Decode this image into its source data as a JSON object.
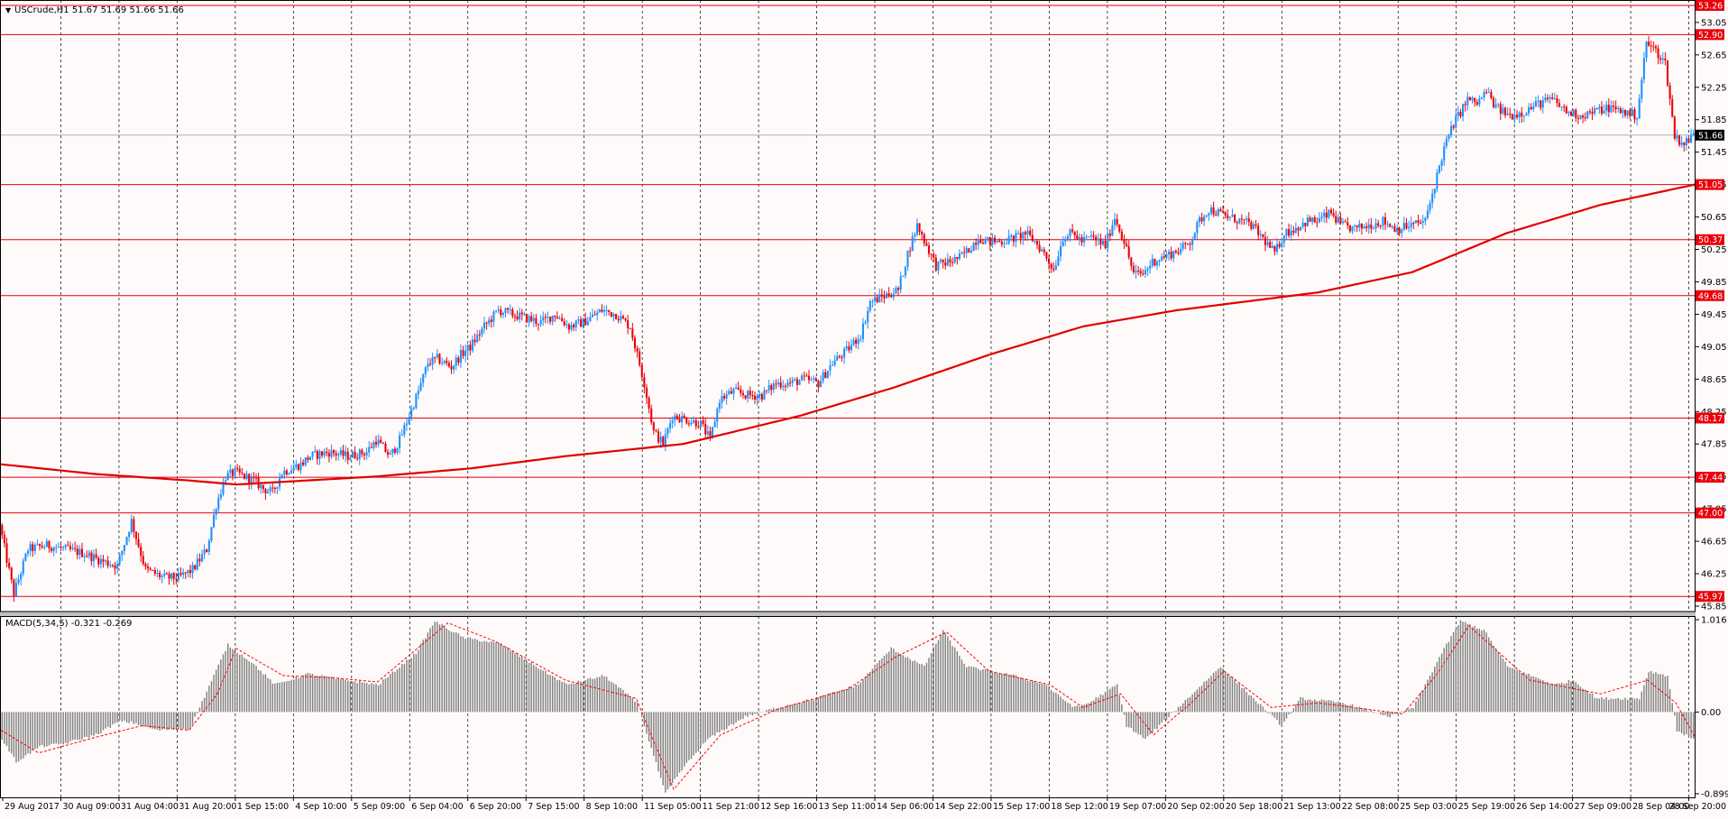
{
  "header": {
    "symbol_line": "USCrude,H1  51.67 51.69 51.66 51.66",
    "indicator_line": "MACD(5,34,5) -0.321 -0.269"
  },
  "colors": {
    "background": "#fffafa",
    "bull_candle": "#1e90ff",
    "bear_candle": "#e8000b",
    "level_line": "#e8000b",
    "moving_average": "#e00000",
    "macd_histogram": "#808080",
    "macd_signal": "#ff0000",
    "grid": "#000000",
    "current_price_tag": "#000000"
  },
  "chart_data": [
    {
      "type": "candlestick",
      "symbol": "USCrude",
      "timeframe": "H1",
      "last": {
        "open": 51.67,
        "high": 51.69,
        "low": 51.66,
        "close": 51.66
      },
      "ylim": [
        45.85,
        53.26
      ],
      "y_ticks": [
        "53.05",
        "52.65",
        "52.25",
        "51.85",
        "51.45",
        "51.05",
        "50.65",
        "50.25",
        "49.85",
        "49.45",
        "49.05",
        "48.65",
        "48.25",
        "47.85",
        "47.45",
        "47.05",
        "46.65",
        "46.25",
        "45.85"
      ],
      "x_ticks": [
        "29 Aug 2017",
        "30 Aug 09:00",
        "31 Aug 04:00",
        "31 Aug 20:00",
        "1 Sep 15:00",
        "4 Sep 10:00",
        "5 Sep 09:00",
        "6 Sep 04:00",
        "6 Sep 20:00",
        "7 Sep 15:00",
        "8 Sep 10:00",
        "11 Sep 05:00",
        "11 Sep 21:00",
        "12 Sep 16:00",
        "13 Sep 11:00",
        "14 Sep 06:00",
        "14 Sep 22:00",
        "15 Sep 17:00",
        "18 Sep 12:00",
        "19 Sep 07:00",
        "20 Sep 02:00",
        "20 Sep 18:00",
        "21 Sep 13:00",
        "22 Sep 08:00",
        "25 Sep 03:00",
        "25 Sep 19:00",
        "26 Sep 14:00",
        "27 Sep 09:00",
        "28 Sep 04:00",
        "28 Sep 20:00"
      ],
      "horizontal_levels": [
        "53.26",
        "52.90",
        "51.05",
        "50.37",
        "49.68",
        "48.17",
        "47.44",
        "47.00",
        "45.97"
      ],
      "current_price": "51.66",
      "close_path": [
        [
          0,
          46.85
        ],
        [
          6,
          46.0
        ],
        [
          12,
          46.55
        ],
        [
          20,
          46.6
        ],
        [
          28,
          46.55
        ],
        [
          36,
          46.5
        ],
        [
          44,
          46.4
        ],
        [
          50,
          46.35
        ],
        [
          56,
          46.9
        ],
        [
          62,
          46.3
        ],
        [
          70,
          46.2
        ],
        [
          76,
          46.2
        ],
        [
          82,
          46.3
        ],
        [
          88,
          46.55
        ],
        [
          92,
          47.1
        ],
        [
          96,
          47.45
        ],
        [
          100,
          47.5
        ],
        [
          104,
          47.45
        ],
        [
          108,
          47.4
        ],
        [
          112,
          47.3
        ],
        [
          116,
          47.25
        ],
        [
          120,
          47.5
        ],
        [
          124,
          47.55
        ],
        [
          128,
          47.6
        ],
        [
          132,
          47.7
        ],
        [
          140,
          47.75
        ],
        [
          148,
          47.7
        ],
        [
          156,
          47.75
        ],
        [
          160,
          47.9
        ],
        [
          166,
          47.7
        ],
        [
          170,
          47.9
        ],
        [
          174,
          48.2
        ],
        [
          178,
          48.5
        ],
        [
          182,
          48.85
        ],
        [
          186,
          48.9
        ],
        [
          192,
          48.8
        ],
        [
          196,
          48.95
        ],
        [
          200,
          49.05
        ],
        [
          206,
          49.3
        ],
        [
          212,
          49.5
        ],
        [
          218,
          49.45
        ],
        [
          224,
          49.4
        ],
        [
          230,
          49.35
        ],
        [
          236,
          49.45
        ],
        [
          242,
          49.3
        ],
        [
          248,
          49.35
        ],
        [
          256,
          49.5
        ],
        [
          262,
          49.45
        ],
        [
          268,
          49.3
        ],
        [
          274,
          48.6
        ],
        [
          278,
          48.0
        ],
        [
          282,
          47.85
        ],
        [
          286,
          48.2
        ],
        [
          292,
          48.15
        ],
        [
          298,
          48.1
        ],
        [
          302,
          47.9
        ],
        [
          306,
          48.4
        ],
        [
          312,
          48.5
        ],
        [
          318,
          48.45
        ],
        [
          324,
          48.45
        ],
        [
          330,
          48.6
        ],
        [
          336,
          48.6
        ],
        [
          342,
          48.65
        ],
        [
          348,
          48.6
        ],
        [
          354,
          48.85
        ],
        [
          360,
          49.0
        ],
        [
          366,
          49.2
        ],
        [
          370,
          49.6
        ],
        [
          374,
          49.65
        ],
        [
          378,
          49.7
        ],
        [
          382,
          49.75
        ],
        [
          386,
          50.2
        ],
        [
          390,
          50.55
        ],
        [
          394,
          50.3
        ],
        [
          398,
          50.05
        ],
        [
          404,
          50.1
        ],
        [
          408,
          50.15
        ],
        [
          412,
          50.25
        ],
        [
          416,
          50.4
        ],
        [
          420,
          50.35
        ],
        [
          426,
          50.35
        ],
        [
          432,
          50.4
        ],
        [
          436,
          50.45
        ],
        [
          440,
          50.35
        ],
        [
          444,
          50.2
        ],
        [
          448,
          50.0
        ],
        [
          452,
          50.4
        ],
        [
          456,
          50.45
        ],
        [
          460,
          50.35
        ],
        [
          464,
          50.4
        ],
        [
          470,
          50.3
        ],
        [
          474,
          50.65
        ],
        [
          478,
          50.35
        ],
        [
          482,
          49.95
        ],
        [
          486,
          49.95
        ],
        [
          490,
          50.1
        ],
        [
          494,
          50.15
        ],
        [
          498,
          50.2
        ],
        [
          502,
          50.25
        ],
        [
          506,
          50.35
        ],
        [
          510,
          50.6
        ],
        [
          514,
          50.75
        ],
        [
          518,
          50.7
        ],
        [
          522,
          50.65
        ],
        [
          528,
          50.6
        ],
        [
          532,
          50.55
        ],
        [
          538,
          50.35
        ],
        [
          542,
          50.2
        ],
        [
          546,
          50.45
        ],
        [
          550,
          50.5
        ],
        [
          556,
          50.6
        ],
        [
          560,
          50.6
        ],
        [
          566,
          50.7
        ],
        [
          570,
          50.55
        ],
        [
          576,
          50.5
        ],
        [
          582,
          50.55
        ],
        [
          588,
          50.6
        ],
        [
          594,
          50.5
        ],
        [
          600,
          50.55
        ],
        [
          606,
          50.6
        ],
        [
          610,
          51.05
        ],
        [
          614,
          51.5
        ],
        [
          618,
          51.8
        ],
        [
          624,
          52.1
        ],
        [
          628,
          52.05
        ],
        [
          632,
          52.2
        ],
        [
          636,
          52.0
        ],
        [
          642,
          51.9
        ],
        [
          648,
          51.95
        ],
        [
          654,
          52.05
        ],
        [
          660,
          52.1
        ],
        [
          666,
          51.95
        ],
        [
          672,
          51.9
        ],
        [
          678,
          51.95
        ],
        [
          684,
          52.0
        ],
        [
          690,
          51.95
        ],
        [
          696,
          51.9
        ],
        [
          700,
          52.8
        ],
        [
          704,
          52.7
        ],
        [
          708,
          52.55
        ],
        [
          712,
          51.65
        ],
        [
          716,
          51.55
        ],
        [
          720,
          51.66
        ]
      ],
      "moving_average_path": [
        [
          0,
          47.6
        ],
        [
          40,
          47.48
        ],
        [
          80,
          47.4
        ],
        [
          100,
          47.35
        ],
        [
          160,
          47.45
        ],
        [
          200,
          47.55
        ],
        [
          240,
          47.7
        ],
        [
          290,
          47.85
        ],
        [
          340,
          48.2
        ],
        [
          380,
          48.55
        ],
        [
          420,
          48.95
        ],
        [
          460,
          49.3
        ],
        [
          500,
          49.5
        ],
        [
          560,
          49.72
        ],
        [
          600,
          49.97
        ],
        [
          640,
          50.45
        ],
        [
          680,
          50.8
        ],
        [
          720,
          51.05
        ]
      ]
    },
    {
      "type": "histogram",
      "name": "MACD(5,34,5)",
      "values_text": [
        "-0.321",
        "-0.269"
      ],
      "ylim": [
        -0.899,
        1.016
      ],
      "y_ticks": [
        "1.016",
        "0.00",
        "-0.899"
      ],
      "histogram_path": [
        [
          0,
          -0.3
        ],
        [
          6,
          -0.55
        ],
        [
          16,
          -0.38
        ],
        [
          26,
          -0.35
        ],
        [
          40,
          -0.25
        ],
        [
          50,
          -0.1
        ],
        [
          56,
          -0.12
        ],
        [
          66,
          -0.2
        ],
        [
          80,
          -0.18
        ],
        [
          90,
          0.4
        ],
        [
          96,
          0.74
        ],
        [
          106,
          0.55
        ],
        [
          116,
          0.3
        ],
        [
          130,
          0.42
        ],
        [
          146,
          0.35
        ],
        [
          160,
          0.3
        ],
        [
          176,
          0.65
        ],
        [
          184,
          1.0
        ],
        [
          196,
          0.82
        ],
        [
          212,
          0.75
        ],
        [
          224,
          0.55
        ],
        [
          240,
          0.3
        ],
        [
          256,
          0.4
        ],
        [
          270,
          0.1
        ],
        [
          282,
          -0.9
        ],
        [
          290,
          -0.6
        ],
        [
          300,
          -0.3
        ],
        [
          316,
          -0.05
        ],
        [
          330,
          0.05
        ],
        [
          346,
          0.15
        ],
        [
          364,
          0.3
        ],
        [
          378,
          0.7
        ],
        [
          392,
          0.5
        ],
        [
          400,
          0.9
        ],
        [
          410,
          0.5
        ],
        [
          430,
          0.4
        ],
        [
          444,
          0.3
        ],
        [
          448,
          0.2
        ],
        [
          456,
          0.05
        ],
        [
          462,
          0.1
        ],
        [
          474,
          0.3
        ],
        [
          478,
          -0.15
        ],
        [
          486,
          -0.3
        ],
        [
          500,
          0.05
        ],
        [
          512,
          0.35
        ],
        [
          518,
          0.5
        ],
        [
          530,
          0.2
        ],
        [
          544,
          -0.15
        ],
        [
          552,
          0.15
        ],
        [
          570,
          0.1
        ],
        [
          590,
          -0.05
        ],
        [
          600,
          0.05
        ],
        [
          612,
          0.65
        ],
        [
          620,
          1.0
        ],
        [
          630,
          0.9
        ],
        [
          640,
          0.5
        ],
        [
          660,
          0.3
        ],
        [
          668,
          0.35
        ],
        [
          678,
          0.15
        ],
        [
          696,
          0.15
        ],
        [
          700,
          0.45
        ],
        [
          708,
          0.4
        ],
        [
          712,
          -0.2
        ],
        [
          720,
          -0.321
        ]
      ],
      "signal_path": [
        [
          0,
          -0.2
        ],
        [
          16,
          -0.45
        ],
        [
          40,
          -0.28
        ],
        [
          60,
          -0.15
        ],
        [
          80,
          -0.2
        ],
        [
          92,
          0.2
        ],
        [
          100,
          0.7
        ],
        [
          120,
          0.4
        ],
        [
          140,
          0.38
        ],
        [
          160,
          0.33
        ],
        [
          190,
          0.98
        ],
        [
          210,
          0.78
        ],
        [
          240,
          0.35
        ],
        [
          270,
          0.15
        ],
        [
          286,
          -0.85
        ],
        [
          306,
          -0.25
        ],
        [
          330,
          0.03
        ],
        [
          360,
          0.25
        ],
        [
          380,
          0.6
        ],
        [
          402,
          0.88
        ],
        [
          420,
          0.45
        ],
        [
          446,
          0.3
        ],
        [
          460,
          0.05
        ],
        [
          476,
          0.2
        ],
        [
          490,
          -0.25
        ],
        [
          506,
          0.1
        ],
        [
          520,
          0.45
        ],
        [
          540,
          0.05
        ],
        [
          560,
          0.1
        ],
        [
          596,
          -0.02
        ],
        [
          610,
          0.4
        ],
        [
          624,
          0.95
        ],
        [
          650,
          0.35
        ],
        [
          680,
          0.2
        ],
        [
          700,
          0.35
        ],
        [
          712,
          0.1
        ],
        [
          720,
          -0.269
        ]
      ]
    }
  ]
}
